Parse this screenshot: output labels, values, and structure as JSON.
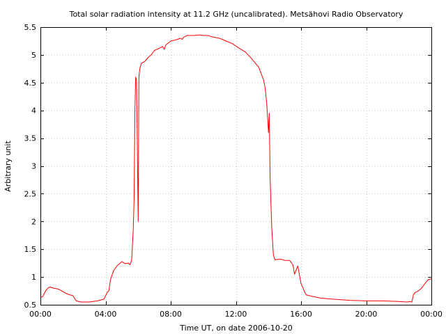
{
  "chart_data": {
    "type": "line",
    "title": "Total solar radiation intensity at 11.2 GHz (uncalibrated). Metsähovi Radio Observatory",
    "xlabel": "Time UT, on date 2006-10-20",
    "ylabel": "Arbitrary unit",
    "xlim": [
      0,
      24
    ],
    "ylim": [
      0.5,
      5.5
    ],
    "grid": true,
    "x_tick_labels": [
      "00:00",
      "04:00",
      "08:00",
      "12:00",
      "16:00",
      "20:00",
      "00:00"
    ],
    "y_tick_labels": [
      "0.5",
      "1",
      "1.5",
      "2",
      "2.5",
      "3",
      "3.5",
      "4",
      "4.5",
      "5",
      "5.5"
    ],
    "series": [
      {
        "color": "#ff0000",
        "x": [
          0.0,
          0.15,
          0.3,
          0.45,
          0.6,
          0.8,
          1.0,
          1.2,
          1.4,
          1.6,
          1.8,
          2.0,
          2.2,
          2.5,
          3.0,
          3.5,
          3.9,
          4.1,
          4.2,
          4.3,
          4.5,
          4.7,
          4.9,
          5.0,
          5.2,
          5.4,
          5.5,
          5.6,
          5.7,
          5.75,
          5.8,
          5.85,
          5.9,
          6.0,
          6.05,
          6.1,
          6.2,
          6.4,
          6.6,
          6.8,
          7.0,
          7.3,
          7.5,
          7.6,
          7.7,
          7.8,
          8.0,
          8.3,
          8.6,
          8.7,
          8.8,
          9.0,
          9.4,
          9.8,
          10.0,
          10.3,
          10.6,
          11.0,
          11.4,
          11.8,
          12.2,
          12.6,
          13.0,
          13.4,
          13.7,
          13.8,
          13.9,
          14.0,
          14.05,
          14.1,
          14.2,
          14.3,
          14.4,
          14.6,
          14.8,
          15.0,
          15.3,
          15.5,
          15.6,
          15.8,
          16.0,
          16.3,
          16.7,
          17.2,
          18.0,
          19.0,
          20.0,
          21.0,
          22.0,
          22.5,
          22.7,
          22.8,
          22.9,
          23.0,
          23.2,
          23.4,
          23.6,
          23.8,
          24.0
        ],
        "y": [
          0.63,
          0.65,
          0.74,
          0.8,
          0.82,
          0.8,
          0.79,
          0.77,
          0.73,
          0.7,
          0.68,
          0.66,
          0.57,
          0.55,
          0.55,
          0.57,
          0.6,
          0.72,
          0.75,
          0.95,
          1.12,
          1.2,
          1.25,
          1.28,
          1.24,
          1.25,
          1.22,
          1.3,
          1.85,
          2.4,
          4.0,
          4.6,
          4.55,
          2.0,
          4.6,
          4.75,
          4.85,
          4.88,
          4.95,
          5.0,
          5.08,
          5.12,
          5.15,
          5.1,
          5.18,
          5.2,
          5.25,
          5.27,
          5.3,
          5.28,
          5.32,
          5.35,
          5.35,
          5.36,
          5.35,
          5.35,
          5.32,
          5.3,
          5.25,
          5.2,
          5.12,
          5.05,
          4.92,
          4.78,
          4.55,
          4.4,
          4.1,
          3.6,
          3.95,
          2.8,
          1.9,
          1.4,
          1.31,
          1.32,
          1.32,
          1.3,
          1.3,
          1.22,
          1.05,
          1.2,
          0.88,
          0.68,
          0.65,
          0.62,
          0.6,
          0.58,
          0.57,
          0.57,
          0.56,
          0.55,
          0.56,
          0.55,
          0.68,
          0.72,
          0.75,
          0.8,
          0.88,
          0.95,
          0.97
        ]
      }
    ]
  }
}
